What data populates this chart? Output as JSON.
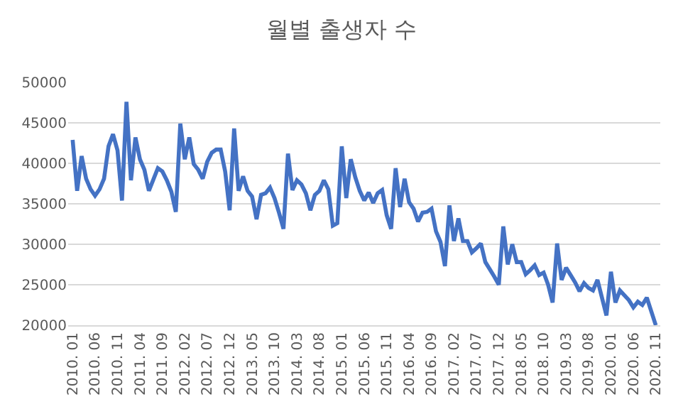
{
  "chart_data": {
    "type": "line",
    "title": "월별 출생자 수",
    "categories": [
      "2010. 01",
      null,
      null,
      null,
      null,
      "2010. 06",
      null,
      null,
      null,
      null,
      "2010. 11",
      null,
      null,
      null,
      null,
      "2011. 04",
      null,
      null,
      null,
      null,
      "2011. 09",
      null,
      null,
      null,
      null,
      "2012. 02",
      null,
      null,
      null,
      null,
      "2012. 07",
      null,
      null,
      null,
      null,
      "2012. 12",
      null,
      null,
      null,
      null,
      "2013. 05",
      null,
      null,
      null,
      null,
      "2013. 10",
      null,
      null,
      null,
      null,
      "2014. 03",
      null,
      null,
      null,
      null,
      "2014. 08",
      null,
      null,
      null,
      null,
      "2015. 01",
      null,
      null,
      null,
      null,
      "2015. 06",
      null,
      null,
      null,
      null,
      "2015. 11",
      null,
      null,
      null,
      null,
      "2016. 04",
      null,
      null,
      null,
      null,
      "2016. 09",
      null,
      null,
      null,
      null,
      "2017. 02",
      null,
      null,
      null,
      null,
      "2017. 07",
      null,
      null,
      null,
      null,
      "2017. 12",
      null,
      null,
      null,
      null,
      "2018. 05",
      null,
      null,
      null,
      null,
      "2018. 10",
      null,
      null,
      null,
      null,
      "2019. 03",
      null,
      null,
      null,
      null,
      "2019. 08",
      null,
      null,
      null,
      null,
      "2020. 01",
      null,
      null,
      null,
      null,
      "2020. 06",
      null,
      null,
      null,
      null,
      "2020. 11"
    ],
    "series": [
      {
        "color": "#4472c4",
        "values": [
          42900,
          36600,
          40900,
          38100,
          36800,
          36000,
          36800,
          38100,
          42100,
          43600,
          41600,
          35400,
          47600,
          37900,
          43200,
          40500,
          39200,
          36600,
          38000,
          39400,
          39000,
          37900,
          36500,
          34000,
          44900,
          40500,
          43200,
          39900,
          39200,
          38100,
          40200,
          41300,
          41700,
          41700,
          39000,
          34200,
          44300,
          36600,
          38400,
          36600,
          35900,
          33100,
          36100,
          36300,
          37000,
          35700,
          33900,
          31900,
          41200,
          36700,
          37900,
          37400,
          36300,
          34200,
          36100,
          36600,
          37900,
          36800,
          32300,
          32600,
          42100,
          35700,
          40500,
          38300,
          36600,
          35400,
          36400,
          35100,
          36300,
          36700,
          33600,
          31900,
          39400,
          34600,
          38100,
          35200,
          34400,
          32800,
          33900,
          34000,
          34400,
          31600,
          30300,
          27300,
          34800,
          30400,
          33200,
          30400,
          30400,
          29000,
          29500,
          30100,
          27800,
          26900,
          26000,
          25000,
          32200,
          27500,
          30000,
          27800,
          27800,
          26300,
          26800,
          27400,
          26200,
          26500,
          25000,
          22800,
          30100,
          25600,
          27100,
          26200,
          25300,
          24200,
          25200,
          24600,
          24300,
          25600,
          23400,
          21200,
          26600,
          22800,
          24300,
          23700,
          23100,
          22200,
          22900,
          22500,
          23400,
          21700,
          20000
        ]
      }
    ],
    "ylim": [
      20000,
      50000
    ],
    "yticks": [
      20000,
      25000,
      30000,
      35000,
      40000,
      45000,
      50000
    ],
    "grid": "y",
    "marker": "none",
    "line_style": "solid"
  }
}
